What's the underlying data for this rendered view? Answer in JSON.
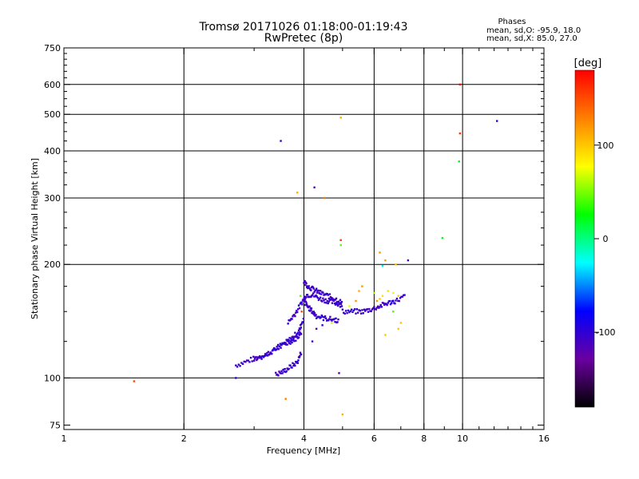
{
  "header": {
    "title_line1": "Tromsø 20171026 01:18:00-01:19:43",
    "title_line2": "RwPretec (8p)",
    "phase_title": "Phases",
    "stat_o": "mean, sd,O: -95.9, 18.0",
    "stat_x": "mean, sd,X:  85.0, 27.0"
  },
  "chart_data": {
    "type": "scatter",
    "title": "Tromsø 20171026 01:18:00-01:19:43",
    "subtitle": "RwPretec (8p)",
    "xlabel": "Frequency [MHz]",
    "ylabel": "Stationary phase Virtual Height [km]",
    "x_scale": "log",
    "y_scale": "log",
    "xlim": [
      1,
      16
    ],
    "ylim": [
      73,
      750
    ],
    "x_ticks": [
      1,
      2,
      4,
      6,
      8,
      10,
      16
    ],
    "x_tick_labels": [
      "1",
      "2",
      "4",
      "6",
      "8",
      "10",
      "16"
    ],
    "x_grid": [
      2,
      4,
      6,
      8,
      10
    ],
    "y_ticks": [
      75,
      100,
      200,
      300,
      400,
      500,
      600,
      750
    ],
    "y_tick_labels": [
      "75",
      "100",
      "200",
      "300",
      "400",
      "500",
      "600",
      "750"
    ],
    "y_grid": [
      100,
      200,
      300,
      400,
      500,
      600
    ],
    "grid": true,
    "colorbar": {
      "label": "[deg]",
      "range": [
        -180,
        180
      ],
      "ticks": [
        100,
        0,
        -100
      ],
      "tick_labels": [
        "100",
        "0",
        "-100"
      ],
      "colors": [
        "#000000",
        "#6a00a0",
        "#0000ff",
        "#00ffff",
        "#00ff00",
        "#ffff00",
        "#ff8000",
        "#ff0000"
      ]
    },
    "points": [
      [
        1.5,
        98,
        150
      ],
      [
        3.5,
        425,
        -100
      ],
      [
        3.85,
        310,
        110
      ],
      [
        4.25,
        320,
        -120
      ],
      [
        4.5,
        300,
        130
      ],
      [
        4.95,
        490,
        110
      ],
      [
        4.95,
        232,
        160
      ],
      [
        4.95,
        225,
        40
      ],
      [
        6.3,
        198,
        -30
      ],
      [
        6.4,
        205,
        120
      ],
      [
        6.8,
        200,
        100
      ],
      [
        7.3,
        205,
        -110
      ],
      [
        6.2,
        215,
        120
      ],
      [
        9.85,
        600,
        175
      ],
      [
        9.85,
        445,
        160
      ],
      [
        9.8,
        375,
        20
      ],
      [
        8.9,
        235,
        20
      ],
      [
        12.2,
        480,
        -100
      ],
      [
        3.6,
        88,
        130
      ],
      [
        5.0,
        80,
        110
      ],
      [
        4.9,
        103,
        -120
      ],
      [
        2.7,
        100,
        -100
      ],
      [
        6.4,
        130,
        100
      ],
      [
        6.9,
        135,
        100
      ],
      [
        7.0,
        140,
        100
      ],
      [
        6.1,
        160,
        120
      ],
      [
        6.2,
        162,
        100
      ],
      [
        5.5,
        170,
        110
      ],
      [
        5.6,
        175,
        120
      ],
      [
        6.0,
        168,
        60
      ],
      [
        6.3,
        165,
        90
      ],
      [
        6.5,
        170,
        90
      ],
      [
        6.7,
        168,
        70
      ],
      [
        6.9,
        165,
        100
      ],
      [
        4.5,
        145,
        120
      ],
      [
        4.7,
        140,
        60
      ],
      [
        5.2,
        155,
        70
      ],
      [
        5.4,
        160,
        120
      ],
      [
        6.7,
        150,
        40
      ],
      [
        6.6,
        160,
        50
      ],
      [
        3.9,
        130,
        -110
      ],
      [
        4.2,
        125,
        -110
      ],
      [
        4.3,
        135,
        -120
      ],
      [
        4.45,
        138,
        -100
      ],
      [
        3.95,
        150,
        150
      ],
      [
        3.92,
        165,
        40
      ]
    ],
    "curves": [
      {
        "x": [
          2.7,
          2.9,
          3.1,
          3.3,
          3.5,
          3.7,
          3.85,
          3.95
        ],
        "y": [
          108,
          111,
          114,
          117,
          121,
          125,
          128,
          133
        ]
      },
      {
        "x": [
          3.0,
          3.2,
          3.4,
          3.6,
          3.75,
          3.9,
          4.0
        ],
        "y": [
          112,
          115,
          120,
          124,
          128,
          134,
          145
        ]
      },
      {
        "x": [
          3.4,
          3.55,
          3.7,
          3.85,
          3.95
        ],
        "y": [
          102,
          104,
          107,
          110,
          118
        ]
      },
      {
        "x": [
          3.65,
          3.8,
          3.95,
          4.05,
          4.2,
          4.4,
          4.6,
          4.8,
          5.0
        ],
        "y": [
          140,
          148,
          158,
          166,
          166,
          162,
          160,
          158,
          156
        ]
      },
      {
        "x": [
          4.0,
          4.1,
          4.25,
          4.4,
          4.6,
          4.8,
          5.0
        ],
        "y": [
          180,
          175,
          171,
          168,
          165,
          162,
          158
        ]
      },
      {
        "x": [
          5.0,
          5.3,
          5.6,
          5.9,
          6.2,
          6.5,
          6.8,
          7.2
        ],
        "y": [
          150,
          150,
          150,
          152,
          155,
          158,
          160,
          165
        ]
      },
      {
        "x": [
          4.0,
          4.1,
          4.2,
          4.3,
          4.5,
          4.7,
          4.9
        ],
        "y": [
          160,
          154,
          150,
          146,
          144,
          143,
          142
        ]
      }
    ]
  }
}
